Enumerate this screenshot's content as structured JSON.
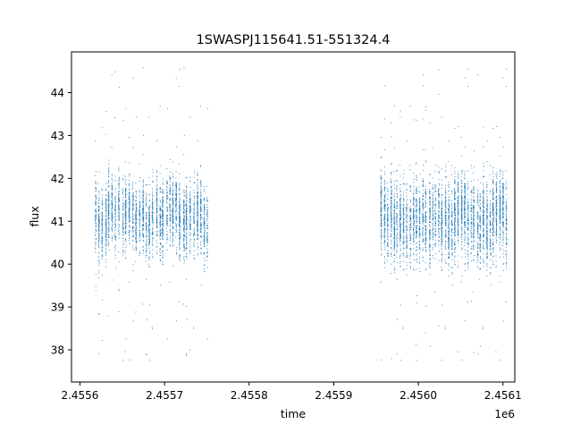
{
  "chart_data": {
    "type": "scatter",
    "title": "1SWASPJ115641.51-551324.4",
    "xlabel": "time",
    "ylabel": "flux",
    "x_offset_label": "1e6",
    "xlim": [
      2455590.0,
      2456114.0
    ],
    "ylim": [
      37.25,
      44.95
    ],
    "x_ticks": [
      {
        "value": 2455600,
        "label": "2.4556"
      },
      {
        "value": 2455700,
        "label": "2.4557"
      },
      {
        "value": 2455800,
        "label": "2.4558"
      },
      {
        "value": 2455900,
        "label": "2.4559"
      },
      {
        "value": 2456000,
        "label": "2.4560"
      },
      {
        "value": 2456100,
        "label": "2.4561"
      }
    ],
    "y_ticks": [
      {
        "value": 38,
        "label": "38"
      },
      {
        "value": 39,
        "label": "39"
      },
      {
        "value": 40,
        "label": "40"
      },
      {
        "value": 41,
        "label": "41"
      },
      {
        "value": 42,
        "label": "42"
      },
      {
        "value": 43,
        "label": "43"
      },
      {
        "value": 44,
        "label": "44"
      }
    ],
    "grid": false,
    "marker_color": "#1f77b4",
    "series": [
      {
        "name": "",
        "segments": [
          {
            "x_start": 2455617,
            "x_end": 2455753,
            "y_center": 41.1,
            "y_spread": 0.75,
            "outlier_min": 37.6,
            "outlier_max": 44.6,
            "nights": 34
          },
          {
            "x_start": 2455955,
            "x_end": 2456106,
            "y_center": 41.0,
            "y_spread": 0.85,
            "outlier_min": 37.6,
            "outlier_max": 44.6,
            "nights": 40
          }
        ]
      }
    ]
  }
}
